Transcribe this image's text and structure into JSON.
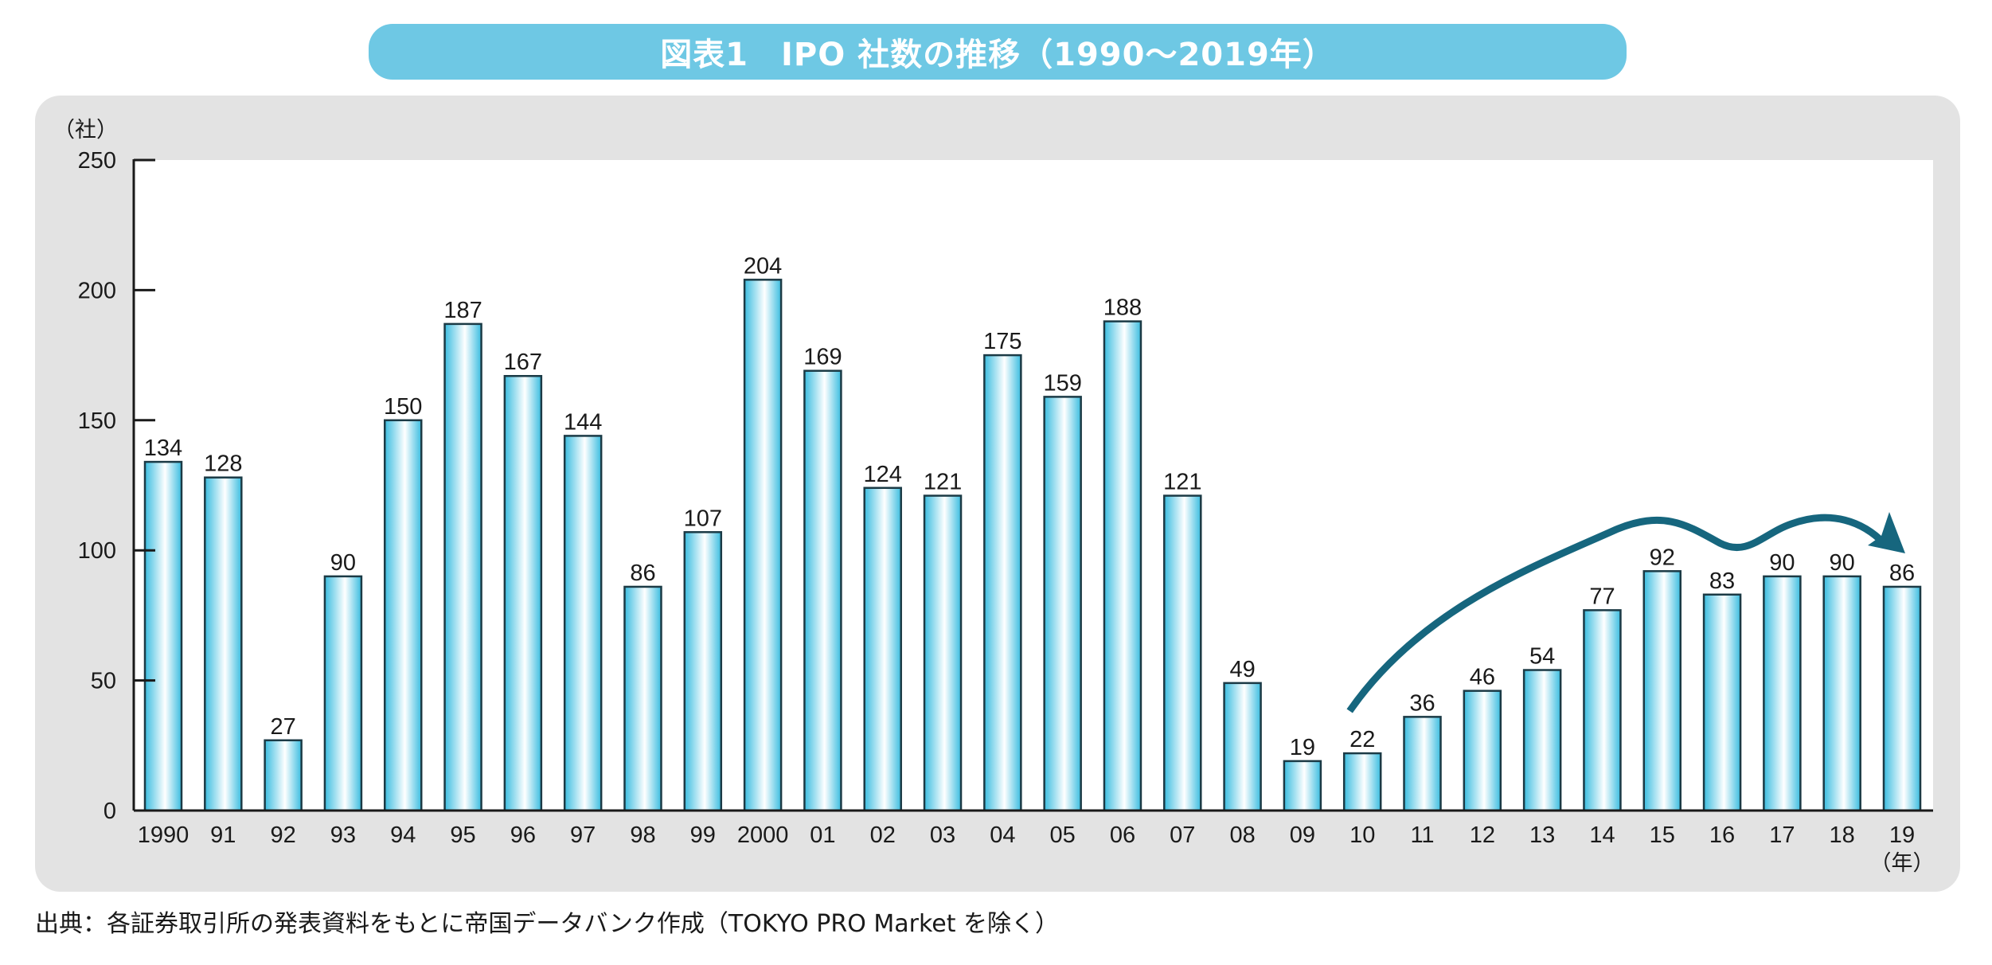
{
  "title": "図表1　IPO 社数の推移（1990～2019年）",
  "source_note": "出典：各証券取引所の発表資料をもとに帝国データバンク作成（TOKYO PRO Market を除く）",
  "colors": {
    "banner": "#6EC8E4",
    "panel": "#E3E3E3",
    "bar_edge": "#3BBDE0",
    "bar_highlight": "#FFFFFF",
    "bar_outline": "#1B3A45",
    "arrow": "#16667E",
    "axis": "#1a1a1a"
  },
  "chart_data": {
    "type": "bar",
    "title": "IPO 社数の推移（1990～2019年）",
    "xlabel": "（年）",
    "ylabel": "（社）",
    "ylim": [
      0,
      250
    ],
    "yticks": [
      0,
      50,
      100,
      150,
      200,
      250
    ],
    "grid": false,
    "legend": "none",
    "categories": [
      "1990",
      "91",
      "92",
      "93",
      "94",
      "95",
      "96",
      "97",
      "98",
      "99",
      "2000",
      "01",
      "02",
      "03",
      "04",
      "05",
      "06",
      "07",
      "08",
      "09",
      "10",
      "11",
      "12",
      "13",
      "14",
      "15",
      "16",
      "17",
      "18",
      "19"
    ],
    "values": [
      134,
      128,
      27,
      90,
      150,
      187,
      167,
      144,
      86,
      107,
      204,
      169,
      124,
      121,
      175,
      159,
      188,
      121,
      49,
      19,
      22,
      36,
      46,
      54,
      77,
      92,
      83,
      90,
      90,
      86
    ],
    "data_labels": true,
    "annotation": {
      "type": "trend-arrow",
      "description": "upward recovery trend arrow",
      "from_category": "10",
      "to_category": "19"
    }
  }
}
